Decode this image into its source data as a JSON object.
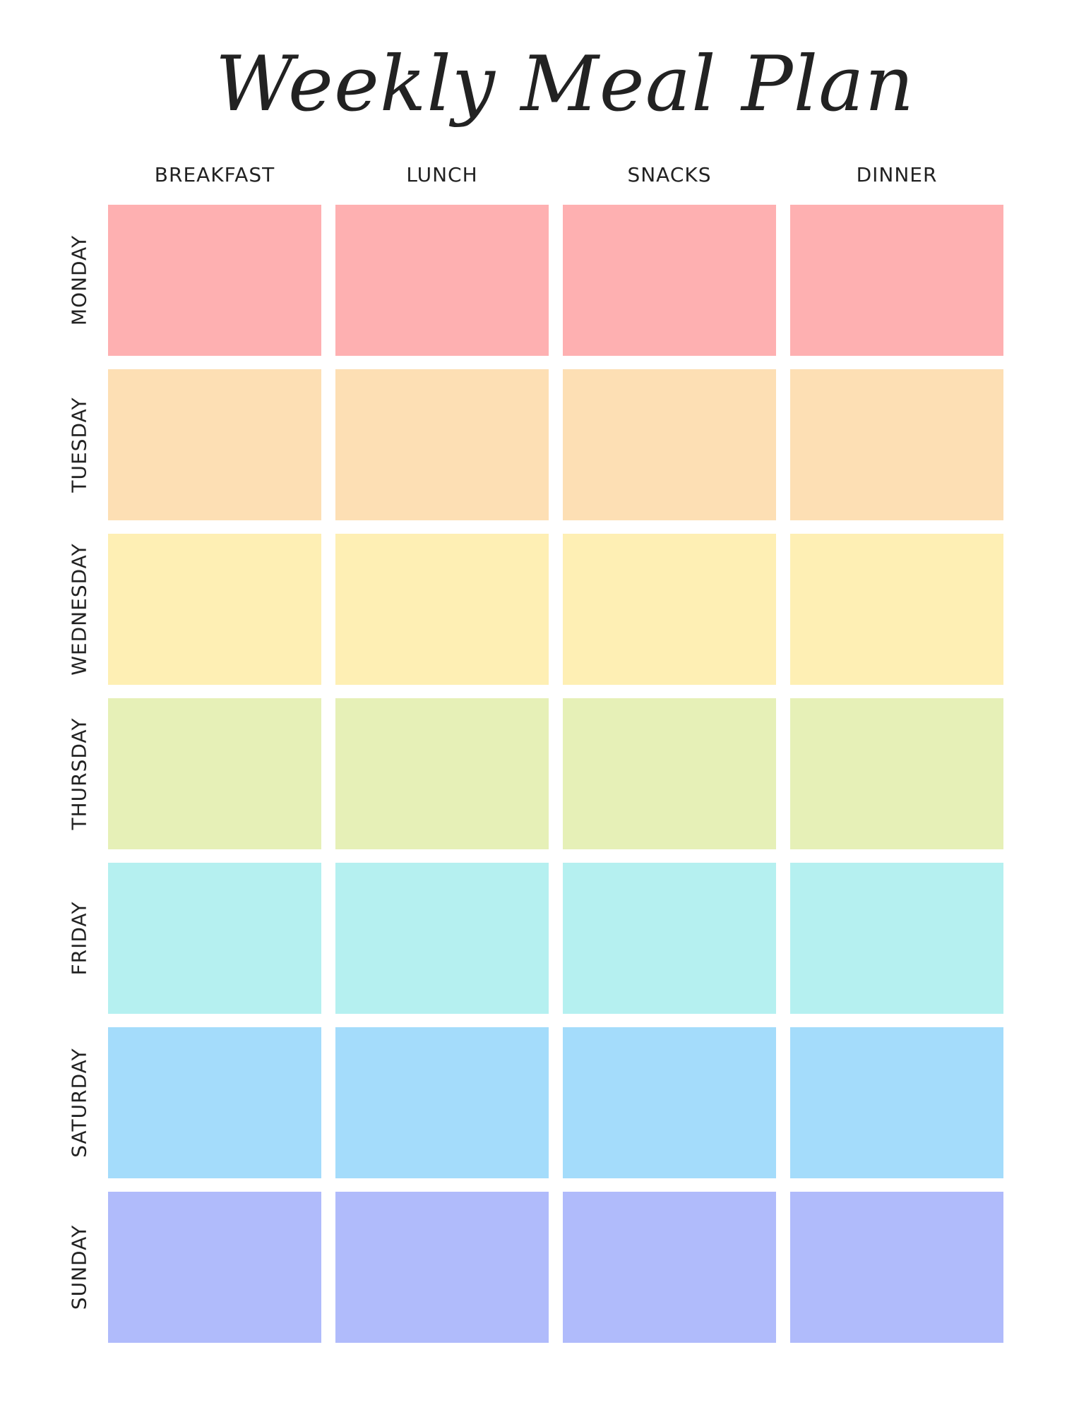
{
  "title": "Weekly Meal Plan",
  "meals": [
    "BREAKFAST",
    "LUNCH",
    "SNACKS",
    "DINNER"
  ],
  "days": [
    {
      "label": "MONDAY",
      "color": "#feb0b1"
    },
    {
      "label": "TUESDAY",
      "color": "#fddfb4"
    },
    {
      "label": "WEDNESDAY",
      "color": "#feefb4"
    },
    {
      "label": "THURSDAY",
      "color": "#e6f0b7"
    },
    {
      "label": "FRIDAY",
      "color": "#b5f0f0"
    },
    {
      "label": "SATURDAY",
      "color": "#a4dcfb"
    },
    {
      "label": "SUNDAY",
      "color": "#b0bbfb"
    }
  ]
}
